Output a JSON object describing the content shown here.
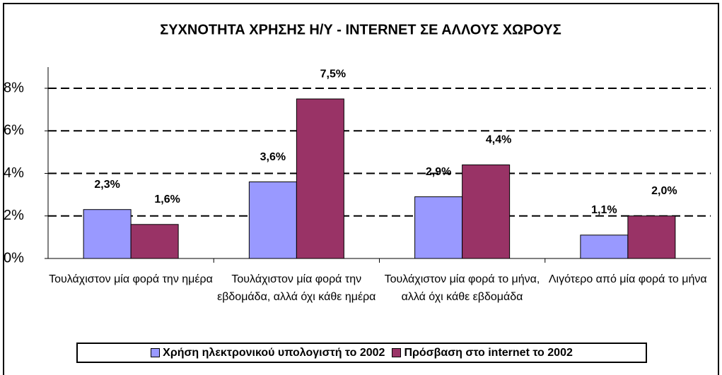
{
  "chart_data": {
    "type": "bar",
    "title": "ΣΥΧΝΟΤΗΤΑ ΧΡΗΣΗΣ Η/Υ - INTERNET ΣΕ ΑΛΛΟΥΣ ΧΩΡΟΥΣ",
    "categories": [
      "Τουλάχιστον μία φορά την ημέρα",
      "Τουλάχιστον μία φορά την εβδομάδα, αλλά όχι κάθε ημέρα",
      "Τουλάχιστον μία φορά το μήνα, αλλά όχι κάθε εβδομάδα",
      "Λιγότερο από μία φορά το μήνα"
    ],
    "series": [
      {
        "name": "Χρήση ηλεκτρονικού υπολογιστή το 2002",
        "color": "#9999ff",
        "values": [
          2.3,
          3.6,
          2.9,
          1.1
        ],
        "value_labels": [
          "2,3%",
          "3,6%",
          "2,9%",
          "1,1%"
        ]
      },
      {
        "name": "Πρόσβαση στο internet το 2002",
        "color": "#993366",
        "values": [
          1.6,
          7.5,
          4.4,
          2.0
        ],
        "value_labels": [
          "1,6%",
          "7,5%",
          "4,4%",
          "2,0%"
        ]
      }
    ],
    "ylim": [
      0,
      8
    ],
    "yticks": [
      {
        "value": 0,
        "label": "0%"
      },
      {
        "value": 2,
        "label": "2%"
      },
      {
        "value": 4,
        "label": "4%"
      },
      {
        "value": 6,
        "label": "6%"
      },
      {
        "value": 8,
        "label": "8%"
      }
    ],
    "grid": true,
    "legend": "bottom"
  }
}
